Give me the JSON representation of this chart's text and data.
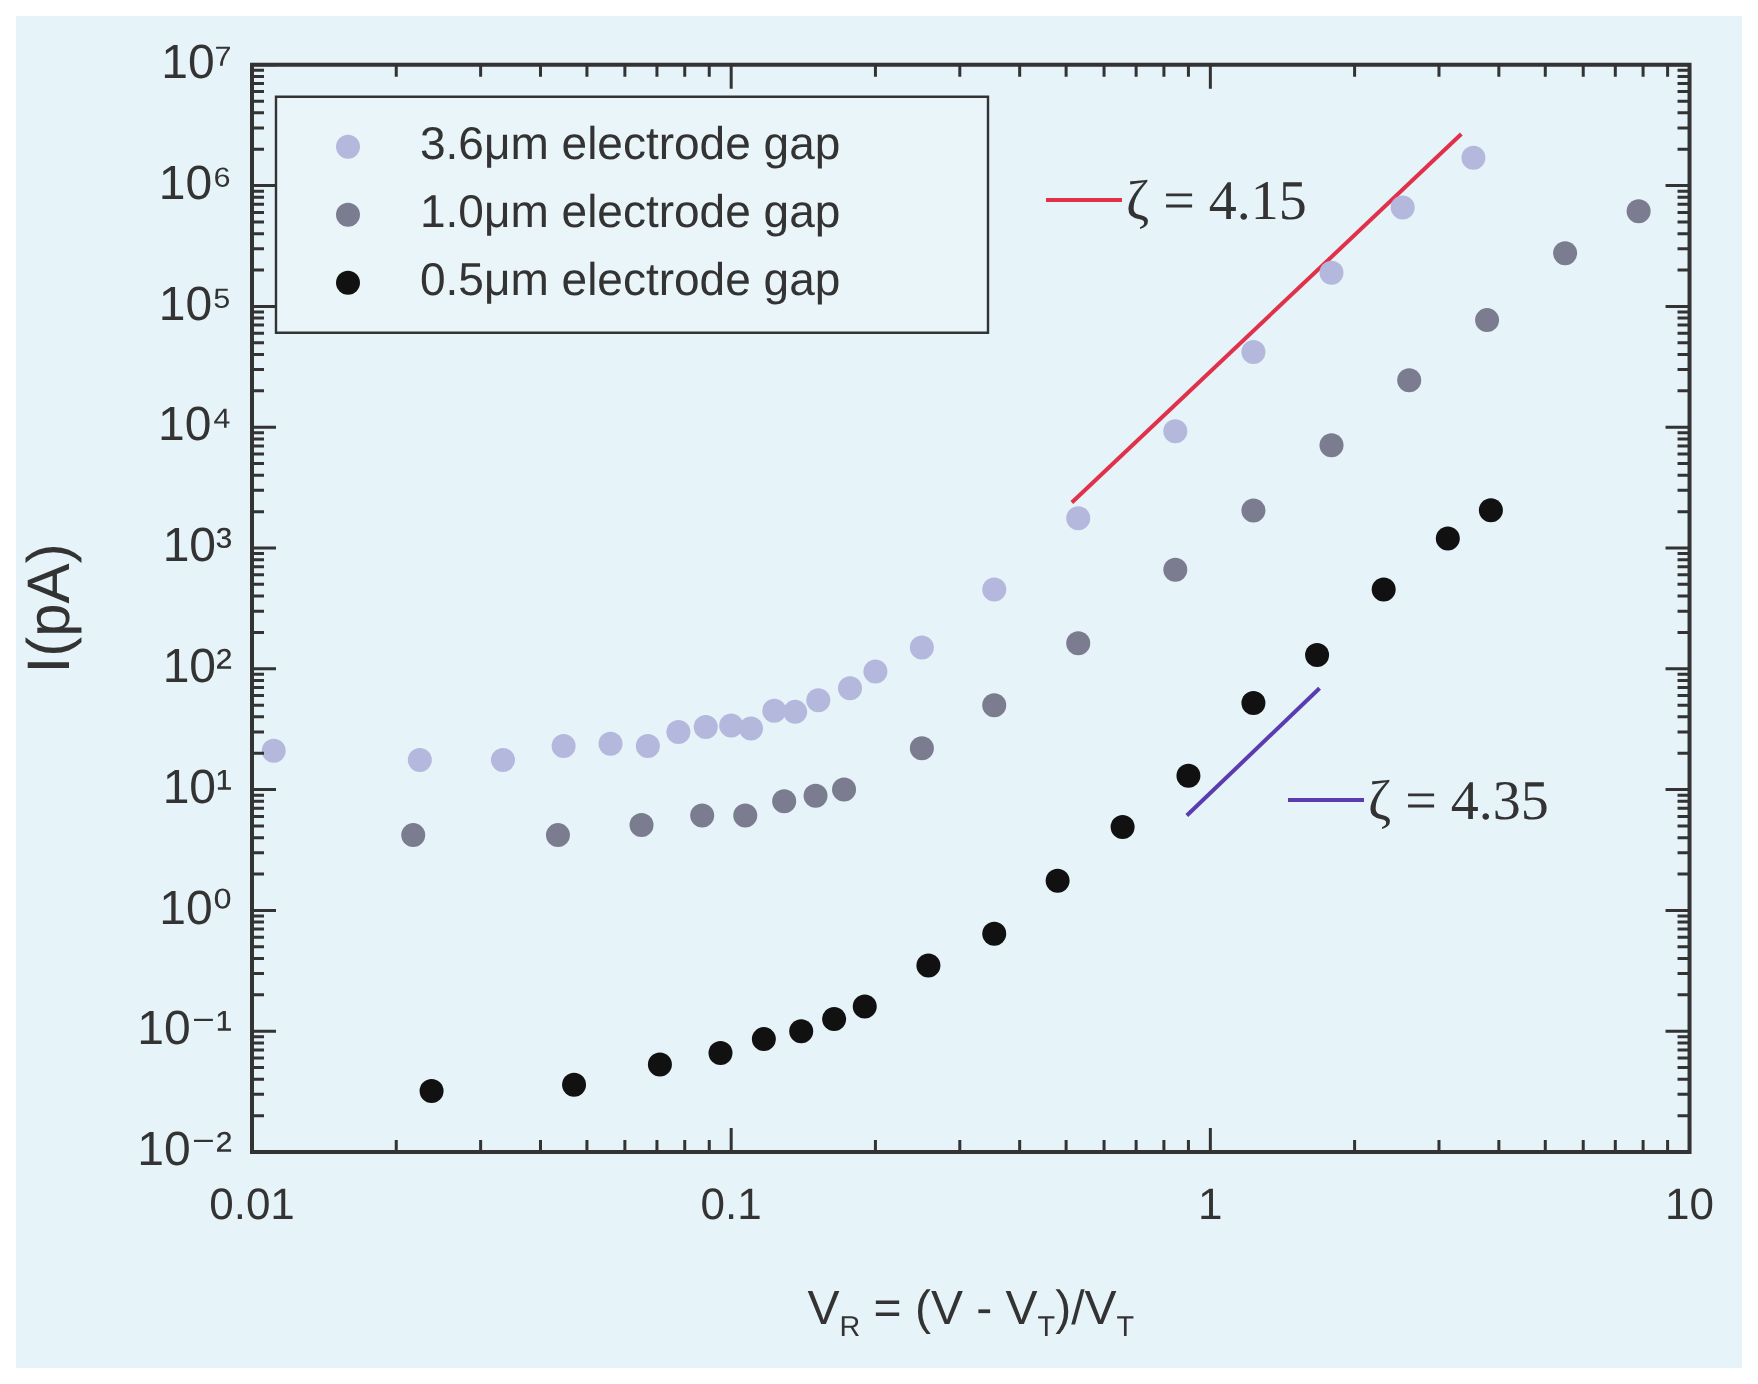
{
  "chart_data": {
    "type": "scatter",
    "xlabel": "V$_{R}$ = (V - V$_{T}$)/V$_{T}$",
    "ylabel": "I(pA)",
    "xlim": [
      0.01,
      10
    ],
    "ylim": [
      0.01,
      10000000
    ],
    "log": "xy",
    "xticks": [
      0.01,
      0.1,
      1,
      10
    ],
    "yticks": [
      {
        "value": 0.01,
        "label": "10⁻²"
      },
      {
        "value": 0.1,
        "label": "10⁻¹"
      },
      {
        "value": 1,
        "label": "10⁰"
      },
      {
        "value": 10,
        "label": "10¹"
      },
      {
        "value": 100,
        "label": "10²"
      },
      {
        "value": 1000,
        "label": "10³"
      },
      {
        "value": 10000,
        "label": "10⁴"
      },
      {
        "value": 100000,
        "label": "10⁵"
      },
      {
        "value": 1000000,
        "label": "10⁶"
      },
      {
        "value": 10000000,
        "label": "10⁷"
      }
    ],
    "grid": false,
    "legend": "top left",
    "marker": "circle",
    "series": [
      {
        "name": "3.6μm electrode gap",
        "color": "#b4b8dc",
        "x": [
          0.0111,
          0.0224,
          0.0334,
          0.0447,
          0.056,
          0.067,
          0.0776,
          0.0885,
          0.1,
          0.11,
          0.123,
          0.136,
          0.152,
          0.177,
          0.2,
          0.25,
          0.354,
          0.53,
          0.845,
          1.23,
          1.79,
          2.52,
          3.54
        ],
        "values": [
          21,
          17.6,
          17.6,
          23,
          24,
          23,
          30,
          33,
          34,
          32,
          45,
          44,
          55,
          69,
          95,
          150,
          453,
          1760,
          9270,
          42000,
          190000,
          660000,
          1700000
        ]
      },
      {
        "name": "1.0μm electrode gap",
        "color": "#7c7c90",
        "x": [
          0.0217,
          0.0435,
          0.065,
          0.087,
          0.107,
          0.129,
          0.15,
          0.172,
          0.25,
          0.354,
          0.53,
          0.845,
          1.23,
          1.79,
          2.6,
          3.78,
          5.5,
          7.83
        ],
        "values": [
          4.2,
          4.2,
          5.1,
          6.1,
          6.1,
          8,
          8.9,
          10,
          22,
          50,
          163,
          660,
          2040,
          7100,
          24500,
          77000,
          275000,
          612000
        ]
      },
      {
        "name": "0.5μm electrode gap",
        "color": "#111111",
        "x": [
          0.0237,
          0.047,
          0.071,
          0.095,
          0.117,
          0.14,
          0.164,
          0.19,
          0.258,
          0.354,
          0.48,
          0.656,
          0.9,
          1.23,
          1.67,
          2.3,
          3.13,
          3.85
        ],
        "values": [
          0.032,
          0.036,
          0.053,
          0.066,
          0.086,
          0.1,
          0.126,
          0.16,
          0.35,
          0.64,
          1.76,
          4.9,
          13,
          52,
          130,
          453,
          1200,
          2050
        ]
      },
      {
        "name": "ζ = 4.15",
        "type": "line",
        "marker": "none",
        "color": "#e0304a",
        "x": [
          0.514,
          3.34
        ],
        "values": [
          2380,
          2670000
        ]
      },
      {
        "name": "ζ = 4.35",
        "type": "line",
        "marker": "none",
        "color": "#5a3cb0",
        "x": [
          0.893,
          1.69
        ],
        "values": [
          6.1,
          69
        ]
      }
    ]
  }
}
